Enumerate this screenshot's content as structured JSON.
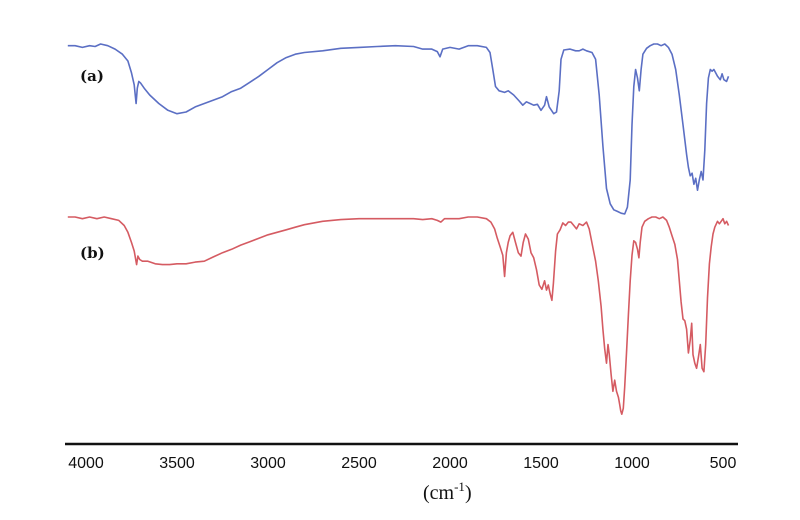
{
  "chart_data": {
    "type": "line",
    "title": "",
    "xlabel": "(cm-1)",
    "xlabel_base": "(cm",
    "xlabel_sup": "-1",
    "xlabel_close": ")",
    "ylabel": "",
    "x_reversed": true,
    "xlim": [
      4100,
      470
    ],
    "ticks": [
      "4000",
      "3500",
      "3000",
      "2500",
      "2000",
      "1500",
      "1000",
      "500"
    ],
    "y_axis_shown": false,
    "grid": false,
    "series": [
      {
        "name": "(a)",
        "color": "#5b6fc4",
        "points": [
          [
            4100,
            0.02
          ],
          [
            4060,
            0.02
          ],
          [
            4020,
            0.04
          ],
          [
            3980,
            0.02
          ],
          [
            3950,
            0.03
          ],
          [
            3920,
            0.0
          ],
          [
            3880,
            0.02
          ],
          [
            3840,
            0.06
          ],
          [
            3800,
            0.12
          ],
          [
            3770,
            0.2
          ],
          [
            3750,
            0.34
          ],
          [
            3735,
            0.48
          ],
          [
            3725,
            0.7
          ],
          [
            3718,
            0.52
          ],
          [
            3710,
            0.44
          ],
          [
            3700,
            0.46
          ],
          [
            3680,
            0.52
          ],
          [
            3650,
            0.6
          ],
          [
            3600,
            0.7
          ],
          [
            3550,
            0.78
          ],
          [
            3500,
            0.82
          ],
          [
            3450,
            0.8
          ],
          [
            3400,
            0.74
          ],
          [
            3350,
            0.7
          ],
          [
            3300,
            0.66
          ],
          [
            3250,
            0.62
          ],
          [
            3200,
            0.56
          ],
          [
            3150,
            0.52
          ],
          [
            3100,
            0.45
          ],
          [
            3050,
            0.38
          ],
          [
            3000,
            0.3
          ],
          [
            2950,
            0.22
          ],
          [
            2900,
            0.16
          ],
          [
            2850,
            0.12
          ],
          [
            2800,
            0.1
          ],
          [
            2700,
            0.08
          ],
          [
            2600,
            0.05
          ],
          [
            2500,
            0.04
          ],
          [
            2400,
            0.03
          ],
          [
            2300,
            0.02
          ],
          [
            2200,
            0.03
          ],
          [
            2150,
            0.06
          ],
          [
            2100,
            0.06
          ],
          [
            2070,
            0.09
          ],
          [
            2055,
            0.15
          ],
          [
            2040,
            0.06
          ],
          [
            2000,
            0.04
          ],
          [
            1950,
            0.06
          ],
          [
            1900,
            0.02
          ],
          [
            1850,
            0.02
          ],
          [
            1800,
            0.04
          ],
          [
            1780,
            0.1
          ],
          [
            1765,
            0.3
          ],
          [
            1750,
            0.5
          ],
          [
            1730,
            0.55
          ],
          [
            1700,
            0.57
          ],
          [
            1680,
            0.55
          ],
          [
            1650,
            0.6
          ],
          [
            1620,
            0.67
          ],
          [
            1600,
            0.72
          ],
          [
            1580,
            0.68
          ],
          [
            1560,
            0.7
          ],
          [
            1540,
            0.72
          ],
          [
            1520,
            0.71
          ],
          [
            1500,
            0.78
          ],
          [
            1480,
            0.72
          ],
          [
            1470,
            0.62
          ],
          [
            1455,
            0.74
          ],
          [
            1430,
            0.82
          ],
          [
            1415,
            0.8
          ],
          [
            1400,
            0.55
          ],
          [
            1390,
            0.18
          ],
          [
            1375,
            0.07
          ],
          [
            1340,
            0.06
          ],
          [
            1310,
            0.08
          ],
          [
            1290,
            0.08
          ],
          [
            1270,
            0.06
          ],
          [
            1250,
            0.08
          ],
          [
            1220,
            0.1
          ],
          [
            1200,
            0.18
          ],
          [
            1180,
            0.6
          ],
          [
            1160,
            1.2
          ],
          [
            1140,
            1.7
          ],
          [
            1120,
            1.88
          ],
          [
            1100,
            1.95
          ],
          [
            1080,
            1.97
          ],
          [
            1060,
            1.99
          ],
          [
            1040,
            2.0
          ],
          [
            1025,
            1.92
          ],
          [
            1010,
            1.6
          ],
          [
            1000,
            0.95
          ],
          [
            990,
            0.5
          ],
          [
            980,
            0.3
          ],
          [
            970,
            0.4
          ],
          [
            960,
            0.55
          ],
          [
            950,
            0.3
          ],
          [
            940,
            0.12
          ],
          [
            920,
            0.05
          ],
          [
            900,
            0.02
          ],
          [
            880,
            0.0
          ],
          [
            860,
            0.0
          ],
          [
            840,
            0.02
          ],
          [
            820,
            0.0
          ],
          [
            800,
            0.04
          ],
          [
            780,
            0.12
          ],
          [
            760,
            0.3
          ],
          [
            740,
            0.6
          ],
          [
            720,
            0.95
          ],
          [
            700,
            1.3
          ],
          [
            690,
            1.45
          ],
          [
            680,
            1.55
          ],
          [
            670,
            1.52
          ],
          [
            660,
            1.65
          ],
          [
            650,
            1.58
          ],
          [
            640,
            1.72
          ],
          [
            630,
            1.6
          ],
          [
            620,
            1.5
          ],
          [
            610,
            1.6
          ],
          [
            600,
            1.25
          ],
          [
            590,
            0.7
          ],
          [
            580,
            0.4
          ],
          [
            570,
            0.3
          ],
          [
            560,
            0.32
          ],
          [
            550,
            0.3
          ],
          [
            530,
            0.38
          ],
          [
            515,
            0.42
          ],
          [
            505,
            0.35
          ],
          [
            495,
            0.42
          ],
          [
            480,
            0.44
          ],
          [
            470,
            0.38
          ]
        ]
      },
      {
        "name": "(b)",
        "color": "#d55b62",
        "points": [
          [
            4100,
            0.0
          ],
          [
            4060,
            0.0
          ],
          [
            4020,
            0.02
          ],
          [
            3980,
            0.0
          ],
          [
            3940,
            0.02
          ],
          [
            3900,
            0.0
          ],
          [
            3860,
            0.02
          ],
          [
            3820,
            0.04
          ],
          [
            3790,
            0.1
          ],
          [
            3770,
            0.18
          ],
          [
            3750,
            0.3
          ],
          [
            3735,
            0.4
          ],
          [
            3722,
            0.56
          ],
          [
            3715,
            0.46
          ],
          [
            3705,
            0.5
          ],
          [
            3690,
            0.52
          ],
          [
            3660,
            0.52
          ],
          [
            3620,
            0.55
          ],
          [
            3580,
            0.56
          ],
          [
            3540,
            0.56
          ],
          [
            3500,
            0.55
          ],
          [
            3450,
            0.55
          ],
          [
            3400,
            0.53
          ],
          [
            3350,
            0.52
          ],
          [
            3300,
            0.47
          ],
          [
            3250,
            0.42
          ],
          [
            3200,
            0.38
          ],
          [
            3150,
            0.33
          ],
          [
            3100,
            0.29
          ],
          [
            3050,
            0.25
          ],
          [
            3000,
            0.21
          ],
          [
            2950,
            0.18
          ],
          [
            2900,
            0.15
          ],
          [
            2850,
            0.12
          ],
          [
            2800,
            0.09
          ],
          [
            2700,
            0.05
          ],
          [
            2600,
            0.03
          ],
          [
            2500,
            0.02
          ],
          [
            2400,
            0.02
          ],
          [
            2300,
            0.02
          ],
          [
            2200,
            0.02
          ],
          [
            2150,
            0.03
          ],
          [
            2100,
            0.02
          ],
          [
            2070,
            0.04
          ],
          [
            2050,
            0.06
          ],
          [
            2030,
            0.02
          ],
          [
            2000,
            0.02
          ],
          [
            1950,
            0.02
          ],
          [
            1900,
            0.0
          ],
          [
            1850,
            0.0
          ],
          [
            1800,
            0.02
          ],
          [
            1775,
            0.06
          ],
          [
            1755,
            0.14
          ],
          [
            1740,
            0.25
          ],
          [
            1725,
            0.35
          ],
          [
            1710,
            0.45
          ],
          [
            1700,
            0.7
          ],
          [
            1690,
            0.42
          ],
          [
            1680,
            0.3
          ],
          [
            1670,
            0.22
          ],
          [
            1655,
            0.18
          ],
          [
            1640,
            0.3
          ],
          [
            1625,
            0.42
          ],
          [
            1610,
            0.46
          ],
          [
            1598,
            0.3
          ],
          [
            1585,
            0.2
          ],
          [
            1570,
            0.26
          ],
          [
            1555,
            0.42
          ],
          [
            1540,
            0.48
          ],
          [
            1525,
            0.62
          ],
          [
            1510,
            0.8
          ],
          [
            1495,
            0.85
          ],
          [
            1480,
            0.75
          ],
          [
            1470,
            0.86
          ],
          [
            1460,
            0.8
          ],
          [
            1450,
            0.9
          ],
          [
            1440,
            0.98
          ],
          [
            1432,
            0.78
          ],
          [
            1420,
            0.4
          ],
          [
            1410,
            0.2
          ],
          [
            1395,
            0.15
          ],
          [
            1380,
            0.07
          ],
          [
            1365,
            0.1
          ],
          [
            1350,
            0.06
          ],
          [
            1335,
            0.06
          ],
          [
            1320,
            0.1
          ],
          [
            1305,
            0.14
          ],
          [
            1290,
            0.08
          ],
          [
            1270,
            0.1
          ],
          [
            1250,
            0.06
          ],
          [
            1235,
            0.14
          ],
          [
            1215,
            0.36
          ],
          [
            1200,
            0.52
          ],
          [
            1185,
            0.75
          ],
          [
            1170,
            1.05
          ],
          [
            1160,
            1.32
          ],
          [
            1150,
            1.55
          ],
          [
            1140,
            1.72
          ],
          [
            1132,
            1.5
          ],
          [
            1125,
            1.62
          ],
          [
            1115,
            1.85
          ],
          [
            1105,
            2.05
          ],
          [
            1095,
            1.92
          ],
          [
            1085,
            2.05
          ],
          [
            1075,
            2.12
          ],
          [
            1068,
            2.2
          ],
          [
            1062,
            2.28
          ],
          [
            1056,
            2.32
          ],
          [
            1048,
            2.25
          ],
          [
            1040,
            2.0
          ],
          [
            1030,
            1.6
          ],
          [
            1020,
            1.15
          ],
          [
            1010,
            0.75
          ],
          [
            1000,
            0.45
          ],
          [
            990,
            0.28
          ],
          [
            980,
            0.3
          ],
          [
            970,
            0.38
          ],
          [
            962,
            0.48
          ],
          [
            955,
            0.3
          ],
          [
            945,
            0.12
          ],
          [
            930,
            0.05
          ],
          [
            910,
            0.02
          ],
          [
            890,
            0.0
          ],
          [
            870,
            0.0
          ],
          [
            850,
            0.02
          ],
          [
            830,
            0.0
          ],
          [
            810,
            0.04
          ],
          [
            795,
            0.12
          ],
          [
            780,
            0.22
          ],
          [
            765,
            0.32
          ],
          [
            750,
            0.5
          ],
          [
            740,
            0.75
          ],
          [
            730,
            1.0
          ],
          [
            720,
            1.2
          ],
          [
            710,
            1.22
          ],
          [
            700,
            1.32
          ],
          [
            690,
            1.6
          ],
          [
            680,
            1.45
          ],
          [
            672,
            1.25
          ],
          [
            665,
            1.62
          ],
          [
            655,
            1.72
          ],
          [
            645,
            1.78
          ],
          [
            635,
            1.65
          ],
          [
            625,
            1.5
          ],
          [
            615,
            1.78
          ],
          [
            605,
            1.82
          ],
          [
            595,
            1.5
          ],
          [
            585,
            0.95
          ],
          [
            575,
            0.55
          ],
          [
            565,
            0.35
          ],
          [
            555,
            0.2
          ],
          [
            545,
            0.12
          ],
          [
            530,
            0.05
          ],
          [
            520,
            0.08
          ],
          [
            510,
            0.05
          ],
          [
            500,
            0.02
          ],
          [
            490,
            0.08
          ],
          [
            480,
            0.05
          ],
          [
            470,
            0.1
          ]
        ]
      }
    ]
  }
}
